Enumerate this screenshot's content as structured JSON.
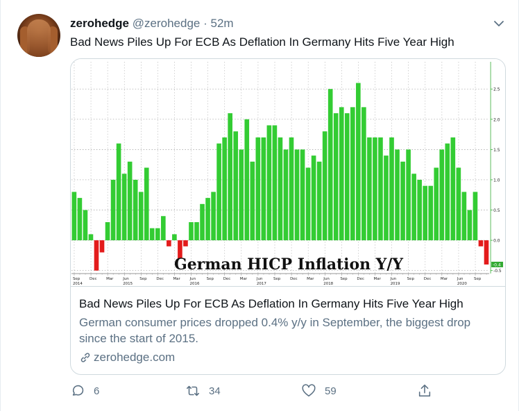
{
  "tweet": {
    "author_name": "zerohedge",
    "handle": "@zerohedge",
    "separator": " · ",
    "time": "52m",
    "text": "Bad News Piles Up For ECB As Deflation In Germany Hits Five Year High"
  },
  "card": {
    "title": "Bad News Piles Up For ECB As Deflation In Germany Hits Five Year High",
    "description": "German consumer prices dropped 0.4% y/y in September, the biggest drop since the start of 2015.",
    "domain": "zerohedge.com"
  },
  "actions": {
    "reply_count": "6",
    "retweet_count": "34",
    "like_count": "59"
  },
  "chart_data": {
    "type": "bar",
    "title": "German HICP Inflation Y/Y",
    "ylim": [
      -0.55,
      2.95
    ],
    "yticks": [
      "2.5",
      "2.0",
      "1.5",
      "1.0",
      "0.5",
      "0.0",
      "-0.5"
    ],
    "ytick_values": [
      2.5,
      2.0,
      1.5,
      1.0,
      0.5,
      0.0,
      -0.5
    ],
    "last_value_label": "-0.4",
    "xtick_months": [
      "Sep",
      "Dec",
      "Mar",
      "Jun",
      "Sep",
      "Dec",
      "Mar",
      "Jun",
      "Sep",
      "Dec",
      "Mar",
      "Jun",
      "Sep",
      "Dec",
      "Mar",
      "Jun",
      "Sep",
      "Dec",
      "Mar",
      "Jun",
      "Sep",
      "Dec",
      "Mar",
      "Jun",
      "Sep"
    ],
    "xtick_years": [
      "2014",
      "",
      "",
      "2015",
      "",
      "",
      "",
      "2016",
      "",
      "",
      "",
      "2017",
      "",
      "",
      "",
      "2018",
      "",
      "",
      "",
      "2019",
      "",
      "",
      "",
      "2020",
      ""
    ],
    "positive_color": "#33cc33",
    "negative_color": "#e31b1b",
    "values": [
      0.8,
      0.7,
      0.5,
      0.1,
      -0.5,
      -0.2,
      0.3,
      1.0,
      1.6,
      1.1,
      1.3,
      1.0,
      0.8,
      1.2,
      0.2,
      0.2,
      0.4,
      -0.1,
      0.1,
      -0.3,
      -0.1,
      0.3,
      0.3,
      0.6,
      0.7,
      0.8,
      1.6,
      1.7,
      2.1,
      1.8,
      1.5,
      2.0,
      1.3,
      1.7,
      1.7,
      1.9,
      1.9,
      1.7,
      1.5,
      1.7,
      1.5,
      1.5,
      1.2,
      1.4,
      1.3,
      1.8,
      2.5,
      2.1,
      2.2,
      2.1,
      2.2,
      2.6,
      2.2,
      1.7,
      1.7,
      1.7,
      1.4,
      1.7,
      1.5,
      1.3,
      1.5,
      1.1,
      1.0,
      0.9,
      0.9,
      1.2,
      1.5,
      1.6,
      1.7,
      1.2,
      0.8,
      0.5,
      0.8,
      -0.1,
      -0.4
    ]
  }
}
